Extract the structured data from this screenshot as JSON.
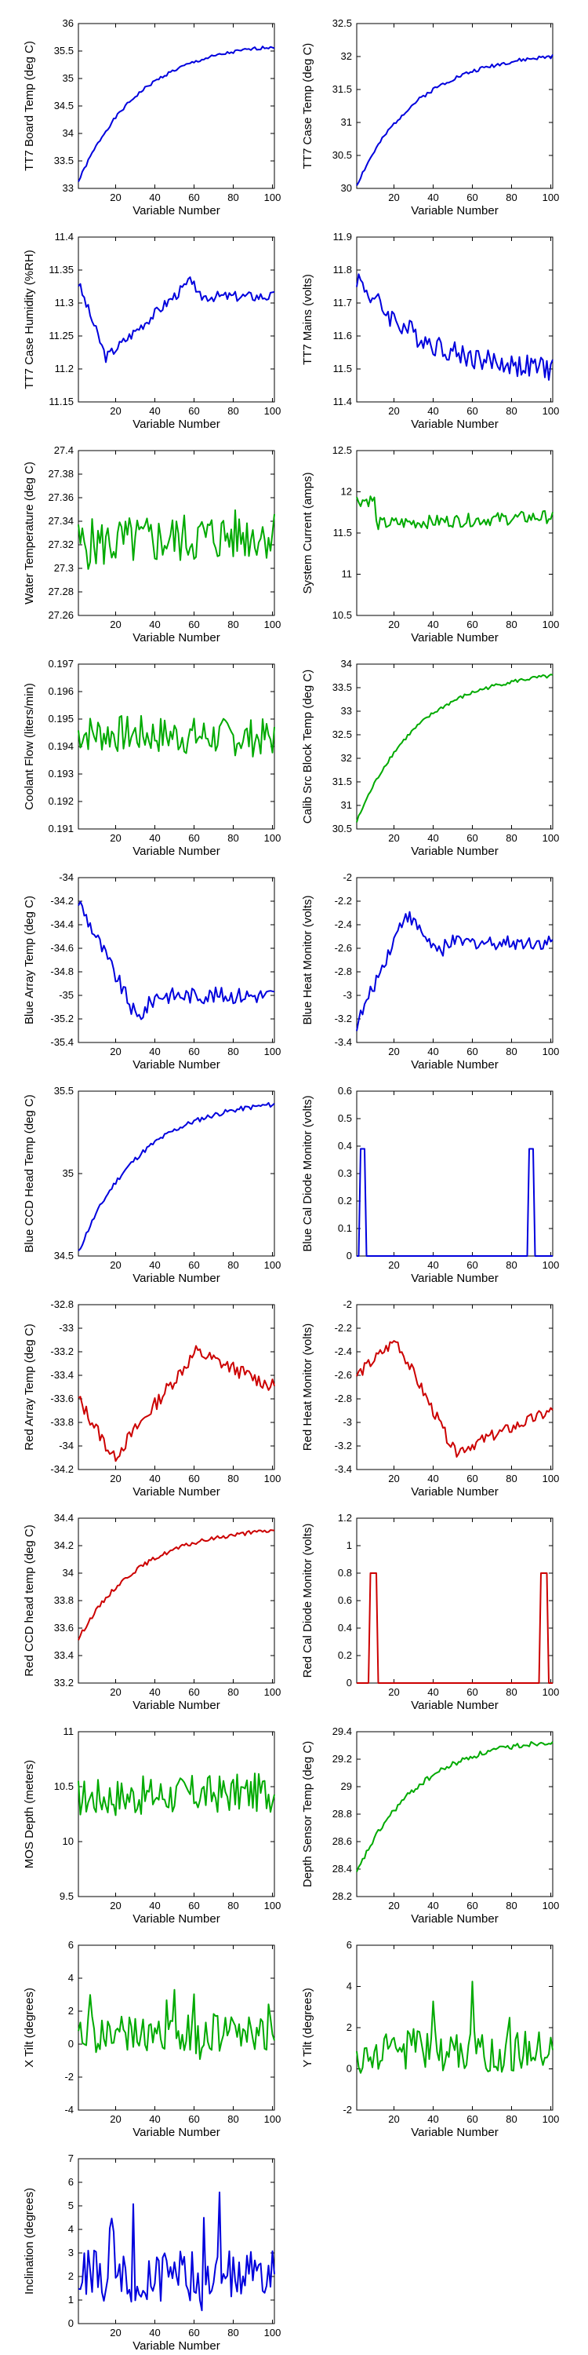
{
  "colors": {
    "blue": "#0000dd",
    "green": "#00aa00",
    "red": "#cc0000"
  },
  "chart_data": [
    {
      "type": "line",
      "ylabel": "TT7 Board Temp (deg C)",
      "xlabel": "Variable Number",
      "xlim": [
        1,
        101
      ],
      "ylim": [
        33,
        36
      ],
      "xticks": [
        20,
        40,
        60,
        80,
        100
      ],
      "yticks": [
        "33",
        "33.5",
        "34",
        "34.5",
        "35",
        "35.5",
        "36"
      ],
      "color": "blue",
      "profile": "rise_fast",
      "startY": 33.12,
      "endY": 35.58,
      "noise": 0.03,
      "seed": 1
    },
    {
      "type": "line",
      "ylabel": "TT7 Case Temp (deg C)",
      "xlabel": "Variable Number",
      "xlim": [
        1,
        101
      ],
      "ylim": [
        30,
        32.5
      ],
      "xticks": [
        20,
        40,
        60,
        80,
        100
      ],
      "yticks": [
        "30",
        "30.5",
        "31",
        "31.5",
        "32",
        "32.5"
      ],
      "color": "blue",
      "profile": "rise_fast",
      "startY": 30.05,
      "endY": 32.0,
      "noise": 0.03,
      "seed": 2
    },
    {
      "type": "line",
      "ylabel": "TT7 Case Humidity (%RH)",
      "xlabel": "Variable Number",
      "xlim": [
        1,
        101
      ],
      "ylim": [
        11.15,
        11.4
      ],
      "xticks": [
        20,
        40,
        60,
        80,
        100
      ],
      "yticks": [
        "11.15",
        "11.2",
        "11.25",
        "11.3",
        "11.35",
        "11.4"
      ],
      "color": "blue",
      "profile": "humidity",
      "startY": 11.33,
      "endY": 11.3,
      "noise": 0.008,
      "seed": 3
    },
    {
      "type": "line",
      "ylabel": "TT7 Mains (volts)",
      "xlabel": "Variable Number",
      "xlim": [
        1,
        101
      ],
      "ylim": [
        11.4,
        11.9
      ],
      "xticks": [
        20,
        40,
        60,
        80,
        100
      ],
      "yticks": [
        "11.4",
        "11.5",
        "11.6",
        "11.7",
        "11.8",
        "11.9"
      ],
      "color": "blue",
      "profile": "fall_slow",
      "startY": 11.78,
      "endY": 11.5,
      "noise": 0.035,
      "seed": 4
    },
    {
      "type": "line",
      "ylabel": "Water Temperature (deg C)",
      "xlabel": "Variable Number",
      "xlim": [
        1,
        101
      ],
      "ylim": [
        27.26,
        27.4
      ],
      "xticks": [
        20,
        40,
        60,
        80,
        100
      ],
      "yticks": [
        "27.26",
        "27.28",
        "27.3",
        "27.32",
        "27.34",
        "27.36",
        "27.38",
        "27.4"
      ],
      "color": "green",
      "profile": "flat",
      "startY": 27.32,
      "endY": 27.33,
      "noise": 0.022,
      "seed": 5
    },
    {
      "type": "line",
      "ylabel": "System Current (amps)",
      "xlabel": "Variable Number",
      "xlim": [
        1,
        101
      ],
      "ylim": [
        10.5,
        12.5
      ],
      "xticks": [
        20,
        40,
        60,
        80,
        100
      ],
      "yticks": [
        "10.5",
        "11",
        "11.5",
        "12",
        "12.5"
      ],
      "color": "green",
      "profile": "current",
      "startY": 11.6,
      "endY": 11.7,
      "noise": 0.08,
      "seed": 6
    },
    {
      "type": "line",
      "ylabel": "Coolant Flow (liters/min)",
      "xlabel": "Variable Number",
      "xlim": [
        1,
        101
      ],
      "ylim": [
        0.191,
        0.197
      ],
      "xticks": [
        20,
        40,
        60,
        80,
        100
      ],
      "yticks": [
        "0.191",
        "0.192",
        "0.193",
        "0.194",
        "0.195",
        "0.196",
        "0.197"
      ],
      "color": "green",
      "profile": "flat",
      "startY": 0.1945,
      "endY": 0.1943,
      "noise": 0.0007,
      "seed": 7
    },
    {
      "type": "line",
      "ylabel": "Calib Src Block Temp (deg C)",
      "xlabel": "Variable Number",
      "xlim": [
        1,
        101
      ],
      "ylim": [
        30.5,
        34
      ],
      "xticks": [
        20,
        40,
        60,
        80,
        100
      ],
      "yticks": [
        "30.5",
        "31",
        "31.5",
        "32",
        "32.5",
        "33",
        "33.5",
        "34"
      ],
      "color": "green",
      "profile": "rise_fast",
      "startY": 30.65,
      "endY": 33.75,
      "noise": 0.04,
      "seed": 8
    },
    {
      "type": "line",
      "ylabel": "Blue Array Temp (deg C)",
      "xlabel": "Variable Number",
      "xlim": [
        1,
        101
      ],
      "ylim": [
        -35.4,
        -34
      ],
      "xticks": [
        20,
        40,
        60,
        80,
        100
      ],
      "yticks": [
        "-35.4",
        "-35.2",
        "-35",
        "-34.8",
        "-34.6",
        "-34.4",
        "-34.2",
        "-34"
      ],
      "color": "blue",
      "profile": "drop_then_flat",
      "startY": -34.2,
      "endY": -35.0,
      "noise": 0.07,
      "seed": 9
    },
    {
      "type": "line",
      "ylabel": "Blue Heat Monitor (volts)",
      "xlabel": "Variable Number",
      "xlim": [
        1,
        101
      ],
      "ylim": [
        -3.4,
        -2
      ],
      "xticks": [
        20,
        40,
        60,
        80,
        100
      ],
      "yticks": [
        "-3.4",
        "-3.2",
        "-3",
        "-2.8",
        "-2.6",
        "-2.4",
        "-2.2",
        "-2"
      ],
      "color": "blue",
      "profile": "rise_then_flat",
      "startY": -3.25,
      "endY": -2.55,
      "noise": 0.06,
      "seed": 10
    },
    {
      "type": "line",
      "ylabel": "Blue CCD Head Temp (deg C)",
      "xlabel": "Variable Number",
      "xlim": [
        1,
        101
      ],
      "ylim": [
        34.5,
        35.5
      ],
      "xticks": [
        20,
        40,
        60,
        80,
        100
      ],
      "yticks": [
        "34.5",
        "35",
        "35.5"
      ],
      "color": "blue",
      "profile": "rise_fast",
      "startY": 34.52,
      "endY": 35.42,
      "noise": 0.015,
      "seed": 11
    },
    {
      "type": "line",
      "ylabel": "Blue Cal Diode Monitor (volts)",
      "xlabel": "Variable Number",
      "xlim": [
        1,
        101
      ],
      "ylim": [
        0,
        0.6
      ],
      "xticks": [
        20,
        40,
        60,
        80,
        100
      ],
      "yticks": [
        "0",
        "0.1",
        "0.2",
        "0.3",
        "0.4",
        "0.5",
        "0.6"
      ],
      "color": "blue",
      "profile": "pulse",
      "base": 0.0,
      "peak": 0.39,
      "pulses": [
        [
          3,
          5
        ],
        [
          89,
          91
        ]
      ],
      "seed": 12
    },
    {
      "type": "line",
      "ylabel": "Red Array Temp (deg C)",
      "xlabel": "Variable Number",
      "xlim": [
        1,
        101
      ],
      "ylim": [
        -34.2,
        -32.8
      ],
      "xticks": [
        20,
        40,
        60,
        80,
        100
      ],
      "yticks": [
        "-34.2",
        "-34",
        "-33.8",
        "-33.6",
        "-33.4",
        "-33.2",
        "-33",
        "-32.8"
      ],
      "color": "red",
      "profile": "dip_then_rise",
      "startY": -33.6,
      "endY": -33.5,
      "noise": 0.06,
      "seed": 13
    },
    {
      "type": "line",
      "ylabel": "Red Heat Monitor (volts)",
      "xlabel": "Variable Number",
      "xlim": [
        1,
        101
      ],
      "ylim": [
        -3.4,
        -2
      ],
      "xticks": [
        20,
        40,
        60,
        80,
        100
      ],
      "yticks": [
        "-3.4",
        "-3.2",
        "-3",
        "-2.8",
        "-2.6",
        "-2.4",
        "-2.2",
        "-2"
      ],
      "color": "red",
      "profile": "red_heat",
      "startY": -2.6,
      "endY": -2.9,
      "noise": 0.05,
      "seed": 14
    },
    {
      "type": "line",
      "ylabel": "Red CCD head temp (deg C)",
      "xlabel": "Variable Number",
      "xlim": [
        1,
        101
      ],
      "ylim": [
        33.2,
        34.4
      ],
      "xticks": [
        20,
        40,
        60,
        80,
        100
      ],
      "yticks": [
        "33.2",
        "33.4",
        "33.6",
        "33.8",
        "34",
        "34.2",
        "34.4"
      ],
      "color": "red",
      "profile": "rise_fast",
      "startY": 33.52,
      "endY": 34.31,
      "noise": 0.015,
      "seed": 15
    },
    {
      "type": "line",
      "ylabel": "Red Cal Diode Monitor (volts)",
      "xlabel": "Variable Number",
      "xlim": [
        1,
        101
      ],
      "ylim": [
        0,
        1.2
      ],
      "xticks": [
        20,
        40,
        60,
        80,
        100
      ],
      "yticks": [
        "0",
        "0.2",
        "0.4",
        "0.6",
        "0.8",
        "1",
        "1.2"
      ],
      "color": "red",
      "profile": "pulse",
      "base": 0.0,
      "peak": 0.8,
      "pulses": [
        [
          8,
          11
        ],
        [
          95,
          98
        ]
      ],
      "seed": 16
    },
    {
      "type": "line",
      "ylabel": "MOS Depth (meters)",
      "xlabel": "Variable Number",
      "xlim": [
        1,
        101
      ],
      "ylim": [
        9.5,
        11
      ],
      "xticks": [
        20,
        40,
        60,
        80,
        100
      ],
      "yticks": [
        "9.5",
        "10",
        "10.5",
        "11"
      ],
      "color": "green",
      "profile": "flat",
      "startY": 10.4,
      "endY": 10.45,
      "noise": 0.18,
      "seed": 17
    },
    {
      "type": "line",
      "ylabel": "Depth Sensor Temp (deg C)",
      "xlabel": "Variable Number",
      "xlim": [
        1,
        101
      ],
      "ylim": [
        28.2,
        29.4
      ],
      "xticks": [
        20,
        40,
        60,
        80,
        100
      ],
      "yticks": [
        "28.2",
        "28.4",
        "28.6",
        "28.8",
        "29",
        "29.2",
        "29.4"
      ],
      "color": "green",
      "profile": "rise_fast",
      "startY": 28.37,
      "endY": 29.33,
      "noise": 0.02,
      "seed": 18
    },
    {
      "type": "line",
      "ylabel": "X Tilt (degrees)",
      "xlabel": "Variable Number",
      "xlim": [
        1,
        101
      ],
      "ylim": [
        -4,
        6
      ],
      "xticks": [
        20,
        40,
        60,
        80,
        100
      ],
      "yticks": [
        "-4",
        "-2",
        "0",
        "2",
        "4",
        "6"
      ],
      "color": "green",
      "profile": "spiky",
      "startY": 0.6,
      "endY": 0.7,
      "noise": 1.1,
      "seed": 19
    },
    {
      "type": "line",
      "ylabel": "Y Tilt (degrees)",
      "xlabel": "Variable Number",
      "xlim": [
        1,
        101
      ],
      "ylim": [
        -2,
        6
      ],
      "xticks": [
        20,
        40,
        60,
        80,
        100
      ],
      "yticks": [
        "-2",
        "0",
        "2",
        "4",
        "6"
      ],
      "color": "green",
      "profile": "spiky",
      "startY": 1.0,
      "endY": 0.8,
      "noise": 1.0,
      "seed": 20
    },
    {
      "type": "line",
      "ylabel": "Inclination (degrees)",
      "xlabel": "Variable Number",
      "xlim": [
        1,
        101
      ],
      "ylim": [
        0,
        7
      ],
      "xticks": [
        20,
        40,
        60,
        80,
        100
      ],
      "yticks": [
        "0",
        "1",
        "2",
        "3",
        "4",
        "5",
        "6",
        "7"
      ],
      "color": "blue",
      "profile": "spiky_pos",
      "startY": 2.0,
      "endY": 2.1,
      "noise": 1.1,
      "seed": 21
    }
  ]
}
